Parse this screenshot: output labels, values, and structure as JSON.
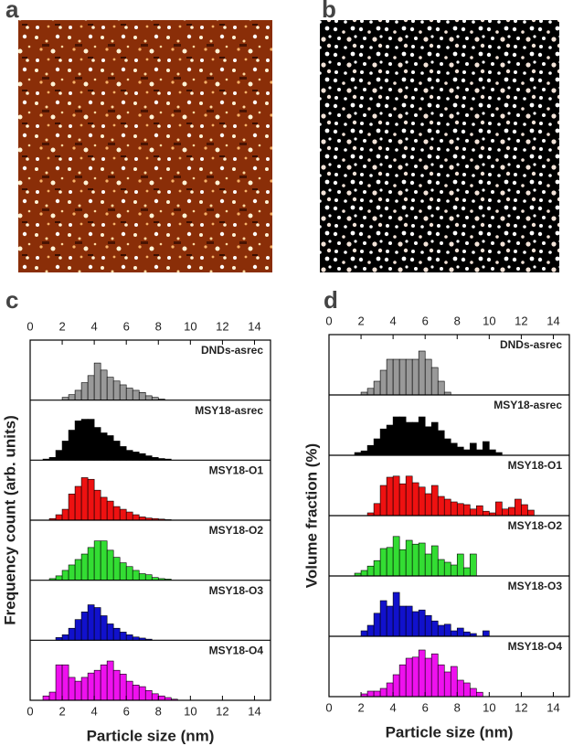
{
  "panels": [
    "a",
    "b",
    "c",
    "d"
  ],
  "chart_data": [
    {
      "type": "histogram",
      "xlabel": "Particle size (nm)",
      "ylabel": "Frequency count (arb. units)",
      "xlim": [
        0,
        15
      ],
      "xticks": [
        0,
        2,
        4,
        6,
        8,
        10,
        12,
        14
      ],
      "ylim": [
        0,
        100
      ],
      "bins": [
        0.4,
        0.8,
        1.2,
        1.6,
        2,
        2.4,
        2.8,
        3.2,
        3.6,
        4,
        4.4,
        4.8,
        5.2,
        5.6,
        6,
        6.4,
        6.8,
        7.2,
        7.6,
        8,
        8.4,
        8.8,
        9.2,
        9.6,
        10,
        10.4
      ],
      "series": [
        {
          "name": "DNDs-asrec",
          "color": "#999999",
          "values": [
            0,
            0,
            0,
            0,
            5,
            10,
            18,
            32,
            45,
            68,
            55,
            42,
            35,
            28,
            22,
            18,
            14,
            8,
            5,
            2,
            0,
            0,
            0,
            0,
            0
          ]
        },
        {
          "name": "MSY18-asrec",
          "color": "#000000",
          "values": [
            0,
            2,
            5,
            18,
            35,
            55,
            72,
            75,
            75,
            60,
            50,
            45,
            35,
            25,
            18,
            15,
            12,
            8,
            5,
            3,
            2,
            0,
            0,
            0,
            0
          ]
        },
        {
          "name": "MSY18-O1",
          "color": "#ee1111",
          "values": [
            0,
            0,
            3,
            10,
            20,
            48,
            62,
            78,
            75,
            55,
            42,
            35,
            25,
            20,
            15,
            10,
            6,
            4,
            3,
            2,
            1,
            0,
            0,
            0,
            0
          ]
        },
        {
          "name": "MSY18-O2",
          "color": "#33dd33",
          "values": [
            0,
            0,
            3,
            8,
            18,
            28,
            38,
            48,
            60,
            72,
            72,
            55,
            42,
            32,
            25,
            18,
            12,
            10,
            5,
            3,
            2,
            0,
            0,
            0,
            0
          ]
        },
        {
          "name": "MSY18-O3",
          "color": "#1111cc",
          "values": [
            0,
            0,
            0,
            5,
            10,
            22,
            38,
            52,
            65,
            60,
            45,
            30,
            22,
            15,
            10,
            6,
            4,
            2,
            0,
            0,
            0,
            0,
            0,
            0,
            0
          ]
        },
        {
          "name": "MSY18-O4",
          "color": "#ee11ee",
          "values": [
            0,
            8,
            15,
            65,
            65,
            42,
            35,
            42,
            50,
            55,
            65,
            72,
            55,
            48,
            35,
            28,
            25,
            18,
            12,
            8,
            5,
            2,
            0,
            0,
            0
          ]
        }
      ]
    },
    {
      "type": "histogram",
      "xlabel": "Particle size (nm)",
      "ylabel": "Volume fraction (%)",
      "xlim": [
        0,
        15
      ],
      "xticks": [
        0,
        2,
        4,
        6,
        8,
        10,
        12,
        14
      ],
      "ylim": [
        0,
        100
      ],
      "bins": [
        0.4,
        0.8,
        1.2,
        1.6,
        2,
        2.4,
        2.8,
        3.2,
        3.6,
        4,
        4.4,
        4.8,
        5.2,
        5.6,
        6,
        6.4,
        6.8,
        7.2,
        7.6,
        8,
        8.4,
        8.8,
        9.2,
        9.6,
        10,
        10.4,
        10.8,
        11.2,
        11.6,
        12,
        12.4,
        12.8
      ],
      "series": [
        {
          "name": "DNDs-asrec",
          "color": "#999999",
          "values": [
            0,
            0,
            0,
            0,
            5,
            12,
            25,
            45,
            65,
            65,
            65,
            65,
            65,
            80,
            65,
            50,
            25,
            5,
            0,
            0,
            0,
            0,
            0,
            0,
            0,
            0,
            0,
            0,
            0,
            0,
            0
          ]
        },
        {
          "name": "MSY18-asrec",
          "color": "#000000",
          "values": [
            0,
            0,
            0,
            5,
            8,
            18,
            30,
            48,
            55,
            70,
            70,
            60,
            60,
            70,
            52,
            60,
            45,
            30,
            22,
            15,
            10,
            22,
            10,
            25,
            10,
            5,
            0,
            0,
            0,
            0,
            0
          ]
        },
        {
          "name": "MSY18-O1",
          "color": "#ee1111",
          "values": [
            0,
            0,
            0,
            0,
            0,
            5,
            22,
            55,
            70,
            72,
            58,
            72,
            60,
            52,
            40,
            55,
            35,
            30,
            25,
            22,
            20,
            12,
            18,
            8,
            5,
            25,
            12,
            15,
            30,
            20,
            10
          ]
        },
        {
          "name": "MSY18-O2",
          "color": "#33dd33",
          "values": [
            0,
            0,
            0,
            5,
            10,
            18,
            28,
            50,
            52,
            72,
            48,
            65,
            58,
            60,
            40,
            55,
            30,
            25,
            20,
            40,
            15,
            40,
            0,
            0,
            0,
            0,
            0,
            0,
            0,
            0,
            0
          ]
        },
        {
          "name": "MSY18-O3",
          "color": "#1111cc",
          "values": [
            0,
            0,
            0,
            0,
            10,
            20,
            42,
            65,
            55,
            80,
            55,
            55,
            45,
            48,
            38,
            28,
            20,
            22,
            10,
            15,
            8,
            5,
            0,
            10,
            0,
            0,
            0,
            0,
            0,
            0,
            0
          ]
        },
        {
          "name": "MSY18-O4",
          "color": "#ee11ee",
          "values": [
            0,
            0,
            0,
            0,
            5,
            10,
            10,
            15,
            25,
            40,
            58,
            70,
            72,
            85,
            70,
            78,
            58,
            45,
            55,
            30,
            25,
            15,
            8,
            0,
            0,
            0,
            0,
            0,
            0,
            0,
            0
          ]
        }
      ]
    }
  ]
}
